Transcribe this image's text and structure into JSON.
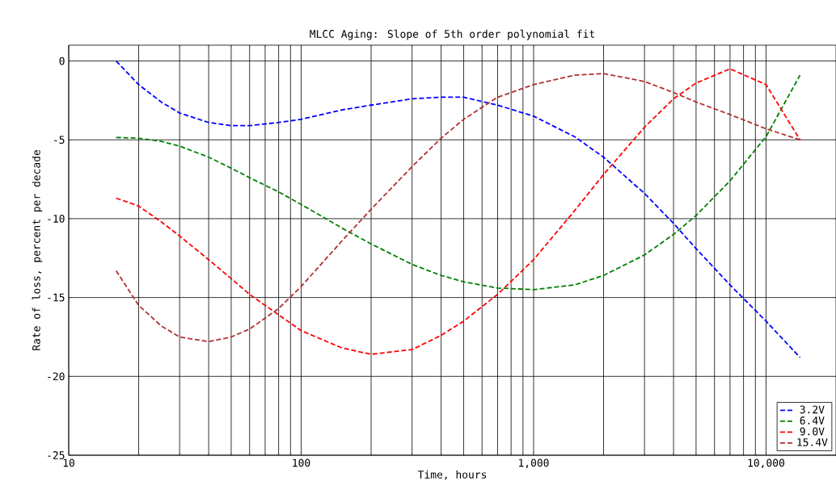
{
  "chart_data": {
    "type": "line",
    "title": "MLCC Aging: Slope of 5th order polynomial fit",
    "xlabel": "Time, hours",
    "ylabel": "Rate of loss, percent per decade",
    "log": "x",
    "grid": true,
    "legend": "bottom right",
    "marker": "none",
    "line_style": "dashed",
    "x": [
      16,
      20,
      25,
      30,
      40,
      50,
      60,
      80,
      100,
      150,
      200,
      300,
      400,
      500,
      700,
      1000,
      1500,
      2000,
      3000,
      4000,
      5000,
      7000,
      10000,
      14000
    ],
    "xlim": [
      10,
      20000
    ],
    "xticks": [
      10,
      100,
      {
        "value": 1000,
        "label": "1,000"
      },
      {
        "value": 10000,
        "label": "10,000"
      }
    ],
    "ylim": [
      -25,
      1
    ],
    "yticks": [
      -25,
      -20,
      -15,
      -10,
      -5,
      0
    ],
    "series": [
      {
        "name": "3.2V",
        "color": "#0000ff",
        "values": [
          0,
          -1.5,
          -2.6,
          -3.3,
          -3.9,
          -4.1,
          -4.1,
          -3.9,
          -3.7,
          -3.1,
          -2.8,
          -2.4,
          -2.3,
          -2.3,
          -2.8,
          -3.5,
          -4.8,
          -6.1,
          -8.4,
          -10.3,
          -11.9,
          -14.2,
          -16.5,
          -18.8
        ]
      },
      {
        "name": "6.4V",
        "color": "#008000",
        "values": [
          -4.85,
          -4.9,
          -5.1,
          -5.4,
          -6.1,
          -6.8,
          -7.4,
          -8.3,
          -9.1,
          -10.6,
          -11.6,
          -12.9,
          -13.6,
          -14.0,
          -14.4,
          -14.5,
          -14.2,
          -13.6,
          -12.3,
          -11.0,
          -9.8,
          -7.6,
          -4.8,
          -0.9
        ]
      },
      {
        "name": "9.0V",
        "color": "#ff0000",
        "values": [
          -8.7,
          -9.2,
          -10.2,
          -11.1,
          -12.6,
          -13.8,
          -14.8,
          -16.1,
          -17.1,
          -18.2,
          -18.6,
          -18.3,
          -17.4,
          -16.5,
          -14.8,
          -12.6,
          -9.5,
          -7.2,
          -4.2,
          -2.4,
          -1.4,
          -0.5,
          -1.5,
          -5.0
        ]
      },
      {
        "name": "15.4V",
        "color": "#b03030",
        "values": [
          -13.3,
          -15.5,
          -16.8,
          -17.5,
          -17.8,
          -17.5,
          -17.0,
          -15.7,
          -14.3,
          -11.4,
          -9.4,
          -6.7,
          -4.9,
          -3.7,
          -2.3,
          -1.5,
          -0.9,
          -0.8,
          -1.3,
          -2.0,
          -2.6,
          -3.4,
          -4.3,
          -5.0
        ]
      }
    ]
  }
}
